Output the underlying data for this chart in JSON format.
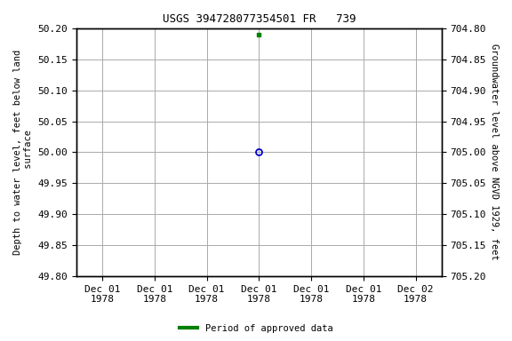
{
  "title": "USGS 394728077354501 FR   739",
  "ylabel_left": "Depth to water level, feet below land\n surface",
  "ylabel_right": "Groundwater level above NGVD 1929, feet",
  "ylim_left_top": 49.8,
  "ylim_left_bottom": 50.2,
  "ylim_right_top": 705.2,
  "ylim_right_bottom": 704.8,
  "yticks_left": [
    49.8,
    49.85,
    49.9,
    49.95,
    50.0,
    50.05,
    50.1,
    50.15,
    50.2
  ],
  "yticks_right": [
    705.2,
    705.15,
    705.1,
    705.05,
    705.0,
    704.95,
    704.9,
    704.85,
    704.8
  ],
  "point_open_x": 3.0,
  "point_open_y": 50.0,
  "point_filled_x": 3.0,
  "point_filled_y": 50.19,
  "open_color": "#0000cc",
  "filled_color": "#008000",
  "bg_color": "#ffffff",
  "grid_color": "#aaaaaa",
  "legend_label": "Period of approved data",
  "legend_color": "#008000",
  "xtick_labels": [
    "Dec 01\n1978",
    "Dec 01\n1978",
    "Dec 01\n1978",
    "Dec 01\n1978",
    "Dec 01\n1978",
    "Dec 01\n1978",
    "Dec 02\n1978"
  ],
  "xlim": [
    -0.5,
    6.5
  ],
  "title_fontsize": 9,
  "label_fontsize": 7.5,
  "tick_fontsize": 8
}
